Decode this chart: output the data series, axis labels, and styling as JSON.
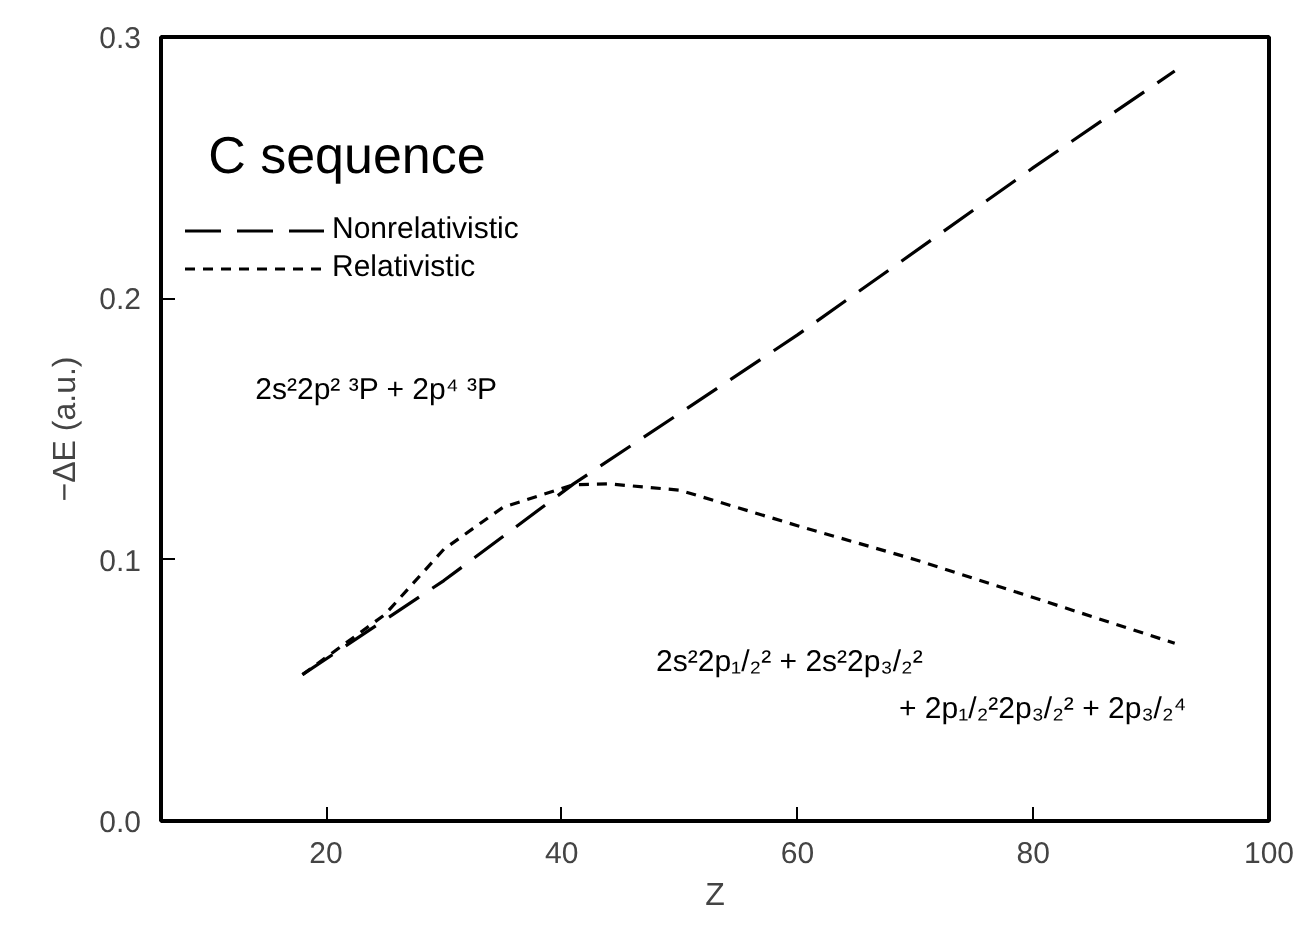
{
  "chart_data": {
    "type": "line",
    "title": "C sequence",
    "xlabel": "Z",
    "ylabel": "−ΔE (a.u.)",
    "xlim": [
      6,
      100
    ],
    "xticks": [
      20,
      40,
      60,
      80,
      100
    ],
    "ylim": [
      0,
      0.3
    ],
    "yticks": [
      {
        "value": 0,
        "label": "0.0"
      },
      {
        "value": 0.1,
        "label": "0.1"
      },
      {
        "value": 0.2,
        "label": "0.2"
      },
      {
        "value": 0.3,
        "label": "0.3"
      }
    ],
    "grid": false,
    "legend": "top left",
    "series": [
      {
        "name": "Nonrelativistic",
        "color": "#000000",
        "line_style": "dashed",
        "x": [
          18,
          30,
          41,
          60,
          80,
          92
        ],
        "values": [
          0.056,
          0.092,
          0.129,
          0.186,
          0.25,
          0.287
        ]
      },
      {
        "name": "Relativistic",
        "color": "#000000",
        "line_style": "dotted",
        "x": [
          18,
          25,
          30,
          35,
          41,
          44,
          50,
          60,
          70,
          80,
          92
        ],
        "values": [
          0.056,
          0.079,
          0.104,
          0.12,
          0.1287,
          0.129,
          0.1266,
          0.113,
          0.1,
          0.0855,
          0.068
        ]
      }
    ],
    "annotations": [
      "2s²2p² ³P + 2p⁴ ³P",
      "2s²2p₁/₂² + 2s²2p₃/₂²",
      "+ 2p₁/₂²2p₃/₂² + 2p₃/₂⁴"
    ]
  }
}
